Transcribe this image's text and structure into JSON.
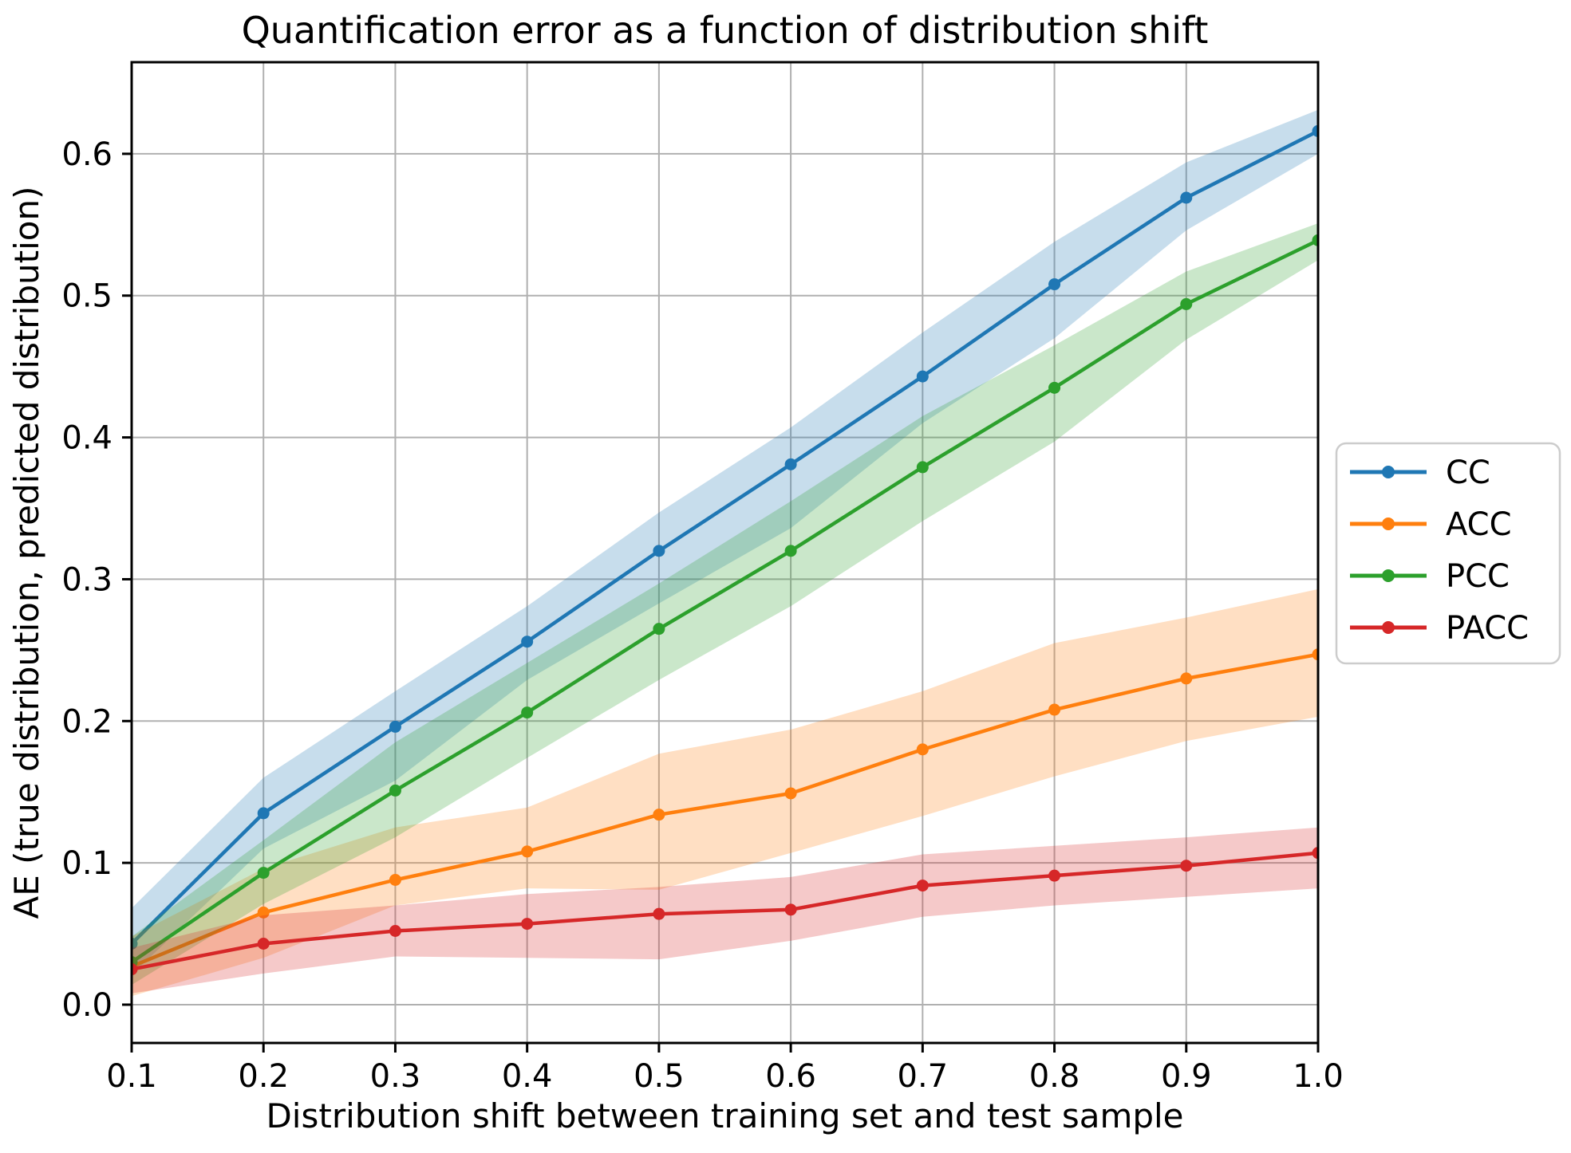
{
  "figure": {
    "title": "Quantification error as a function of distribution shift"
  },
  "chart_data": {
    "type": "line",
    "title": "Quantification error as a function of distribution shift",
    "xlabel": "Distribution shift between training set and test sample",
    "ylabel": "AE (true distribution, predicted distribution)",
    "x": [
      0.1,
      0.2,
      0.3,
      0.4,
      0.5,
      0.6,
      0.7,
      0.8,
      0.9,
      1.0
    ],
    "xlim": [
      0.1,
      1.0
    ],
    "ylim": [
      -0.027,
      0.6646
    ],
    "xticks": [
      "0.1",
      "0.2",
      "0.3",
      "0.4",
      "0.5",
      "0.6",
      "0.7",
      "0.8",
      "0.9",
      "1.0"
    ],
    "xtick_values": [
      0.1,
      0.2,
      0.3,
      0.4,
      0.5,
      0.6,
      0.7,
      0.8,
      0.9,
      1.0
    ],
    "yticks": [
      "0.0",
      "0.1",
      "0.2",
      "0.3",
      "0.4",
      "0.5",
      "0.6"
    ],
    "ytick_values": [
      0.0,
      0.1,
      0.2,
      0.3,
      0.4,
      0.5,
      0.6
    ],
    "grid": true,
    "grid_color": "#b0b0b0",
    "background": "#ffffff",
    "band_alpha": 0.25,
    "legend": {
      "position": "outside-right",
      "entries": [
        "CC",
        "ACC",
        "PCC",
        "PACC"
      ]
    },
    "series": [
      {
        "name": "CC",
        "color": "#1f77b4",
        "values": [
          0.043,
          0.135,
          0.196,
          0.256,
          0.32,
          0.381,
          0.443,
          0.508,
          0.569,
          0.616
        ],
        "band_upper": [
          0.068,
          0.16,
          0.221,
          0.281,
          0.347,
          0.407,
          0.474,
          0.538,
          0.594,
          0.631
        ],
        "band_lower": [
          0.021,
          0.11,
          0.158,
          0.229,
          0.283,
          0.336,
          0.41,
          0.47,
          0.546,
          0.6
        ]
      },
      {
        "name": "ACC",
        "color": "#ff7f0e",
        "values": [
          0.027,
          0.065,
          0.088,
          0.108,
          0.134,
          0.149,
          0.18,
          0.208,
          0.23,
          0.247
        ],
        "band_upper": [
          0.048,
          0.096,
          0.125,
          0.139,
          0.177,
          0.194,
          0.221,
          0.255,
          0.273,
          0.293
        ],
        "band_lower": [
          0.006,
          0.033,
          0.07,
          0.082,
          0.081,
          0.107,
          0.133,
          0.161,
          0.186,
          0.203
        ]
      },
      {
        "name": "PCC",
        "color": "#2ca02c",
        "values": [
          0.03,
          0.093,
          0.151,
          0.206,
          0.265,
          0.32,
          0.379,
          0.435,
          0.494,
          0.539
        ],
        "band_upper": [
          0.048,
          0.116,
          0.185,
          0.241,
          0.297,
          0.355,
          0.415,
          0.465,
          0.517,
          0.551
        ],
        "band_lower": [
          0.014,
          0.071,
          0.118,
          0.174,
          0.229,
          0.281,
          0.341,
          0.397,
          0.469,
          0.525
        ]
      },
      {
        "name": "PACC",
        "color": "#d62728",
        "values": [
          0.025,
          0.043,
          0.052,
          0.057,
          0.064,
          0.067,
          0.084,
          0.091,
          0.098,
          0.107
        ],
        "band_upper": [
          0.04,
          0.063,
          0.07,
          0.078,
          0.083,
          0.09,
          0.106,
          0.112,
          0.118,
          0.125
        ],
        "band_lower": [
          0.008,
          0.022,
          0.034,
          0.033,
          0.032,
          0.045,
          0.062,
          0.07,
          0.076,
          0.082
        ]
      }
    ]
  }
}
